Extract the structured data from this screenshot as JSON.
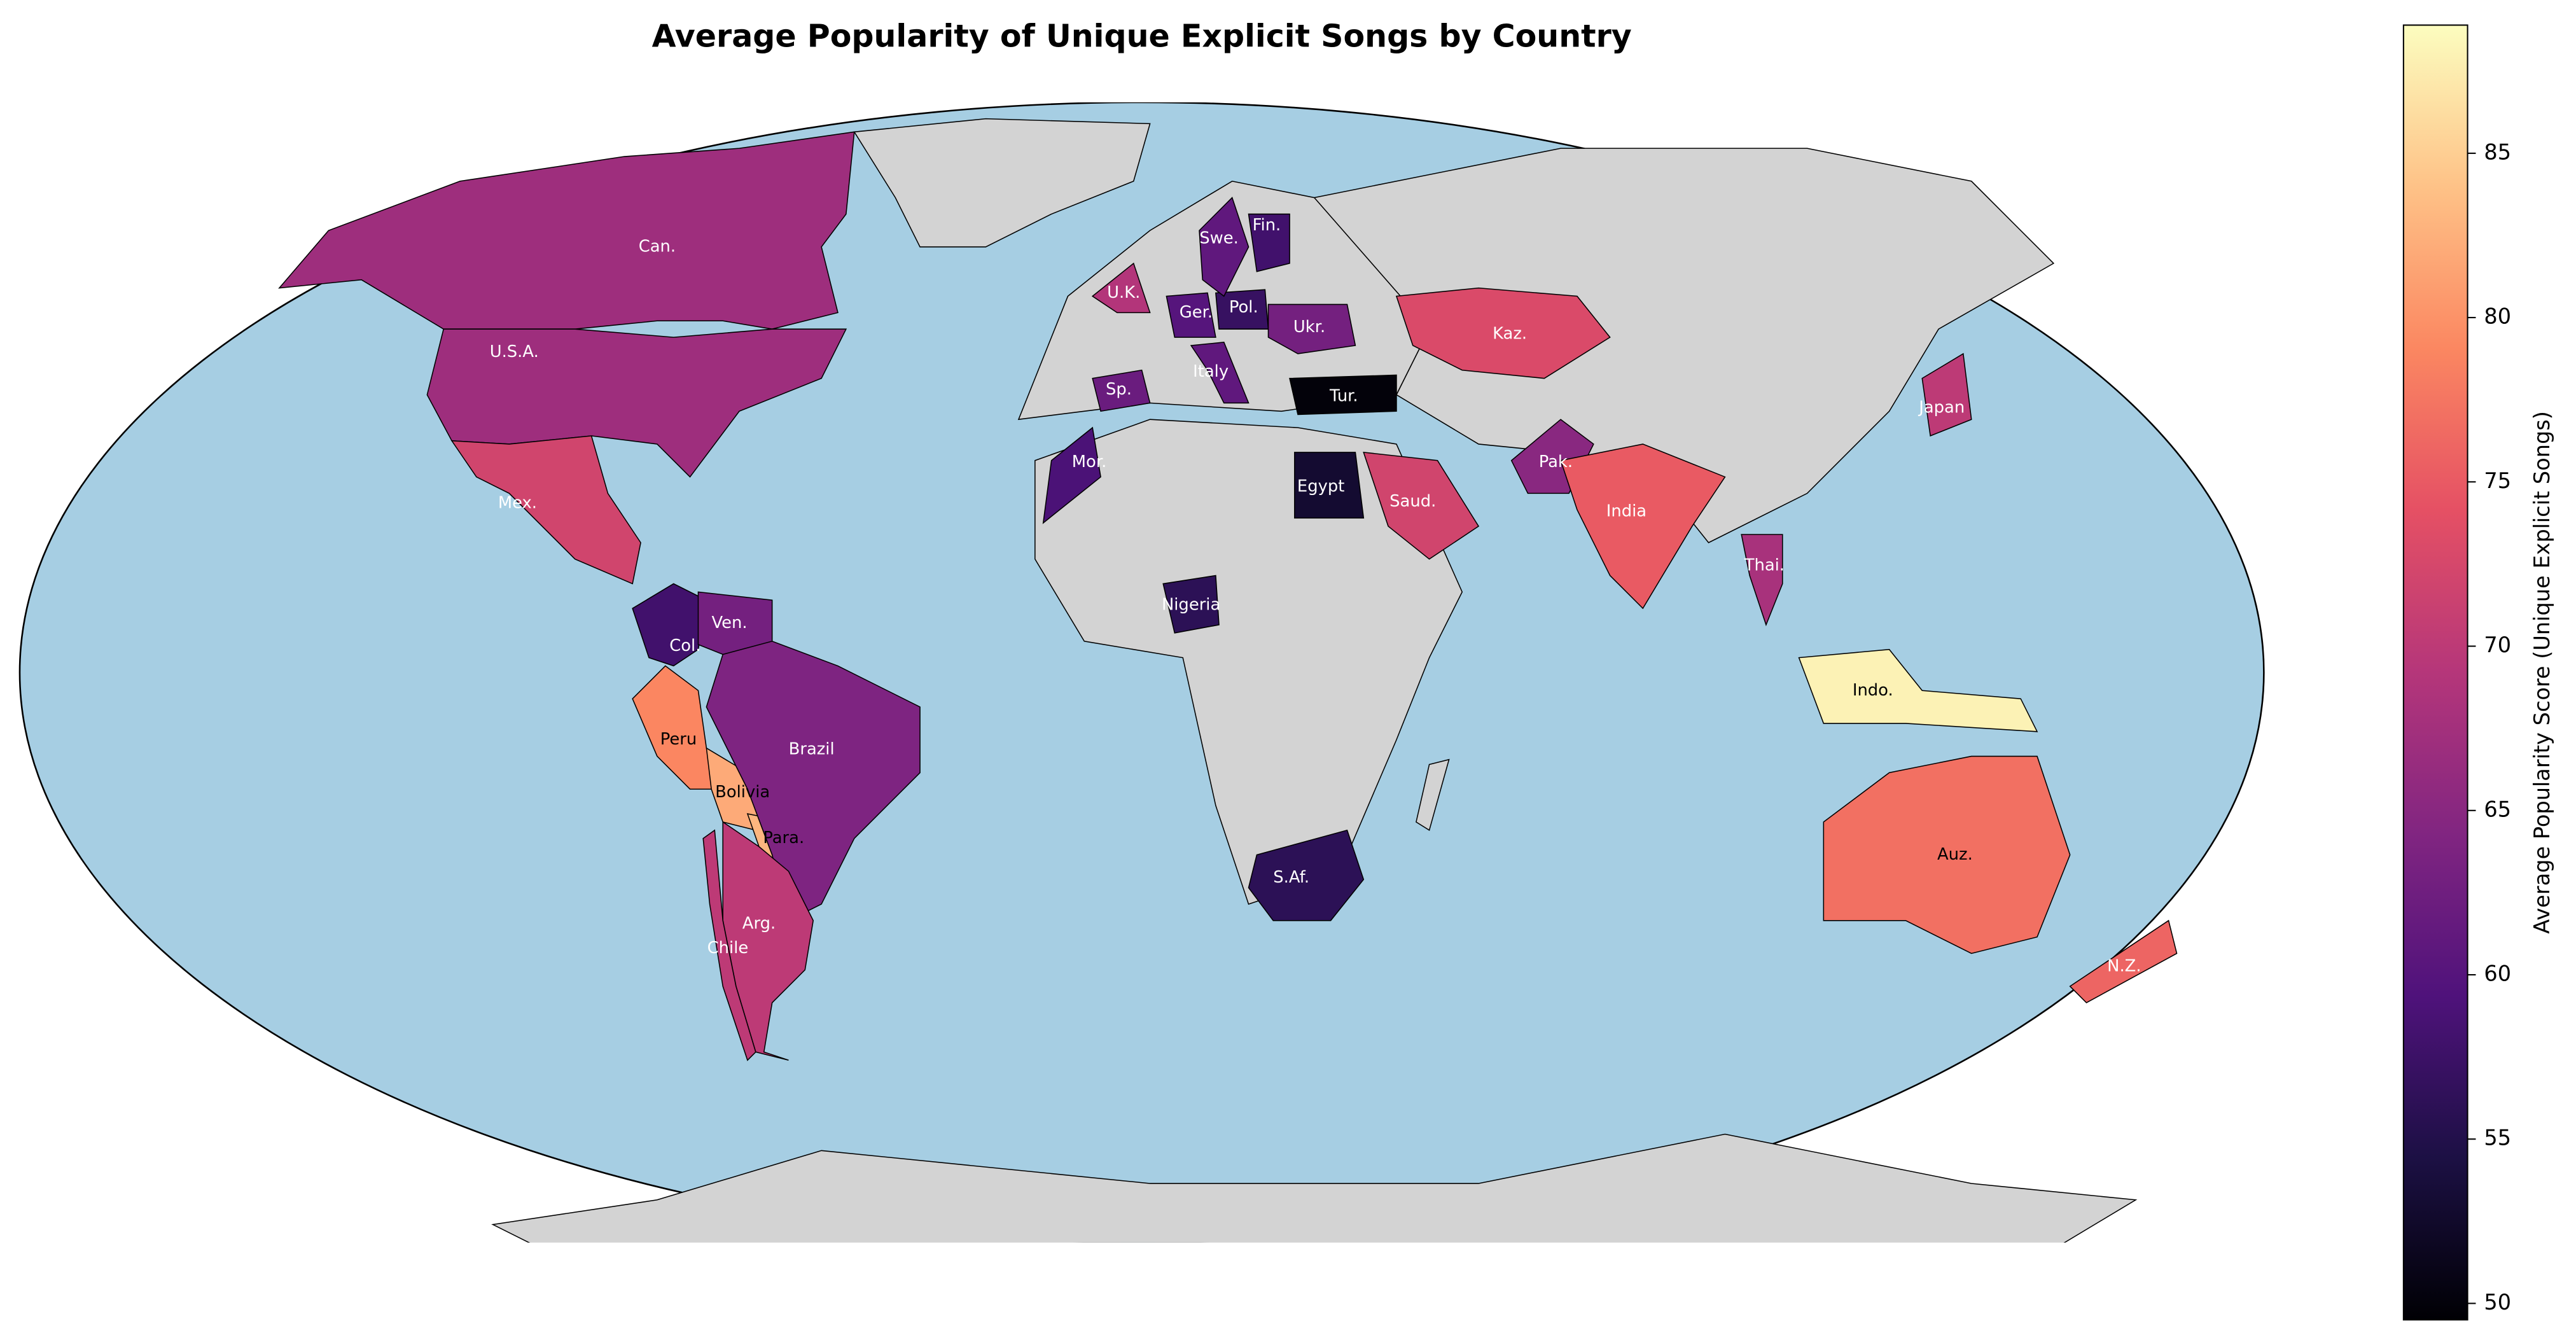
{
  "chart_data": {
    "type": "choropleth",
    "title": "Average Popularity of Unique Explicit Songs by Country",
    "colorbar_label": "Average Popularity Score (Unique Explicit Songs)",
    "colormap": "magma",
    "clim": [
      49.5,
      88.9
    ],
    "cticks": [
      50,
      55,
      60,
      65,
      70,
      75,
      80,
      85
    ],
    "categories": [
      "Can.",
      "U.S.A.",
      "Mex.",
      "Col.",
      "Ven.",
      "Peru",
      "Bolivia",
      "Para.",
      "Brazil",
      "Arg.",
      "Chile",
      "U.K.",
      "Sp.",
      "Ger.",
      "Pol.",
      "Swe.",
      "Fin.",
      "Italy",
      "Ukr.",
      "Tur.",
      "Mor.",
      "Egypt",
      "Saud.",
      "Nigeria",
      "S.Af.",
      "Kaz.",
      "Pak.",
      "India",
      "Thai.",
      "Japan",
      "Indo.",
      "Auz.",
      "N.Z."
    ],
    "values": [
      67,
      67,
      72,
      58,
      63,
      79,
      82,
      83,
      64,
      70,
      70,
      69,
      62,
      60,
      57,
      61,
      58,
      61,
      63,
      50,
      59,
      53,
      72,
      56,
      56,
      73,
      65,
      75,
      68,
      70,
      88,
      77,
      76
    ]
  }
}
